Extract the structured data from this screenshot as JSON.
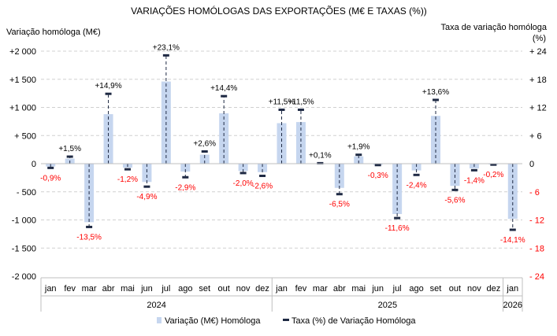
{
  "chart_data": {
    "type": "bar",
    "title": "VARIAÇÕES HOMÓLOGAS DAS EXPORTAÇÕES (M€ E TAXAS (%))",
    "ylabel": "Variação homóloga (M€)",
    "y2label": "Taxa de variação homóloga",
    "y2unit": "(%)",
    "ylim": [
      -2000,
      2000
    ],
    "y2lim": [
      -24,
      24
    ],
    "yticks": [
      "+2 000",
      "+1 500",
      "+1 000",
      "+ 500",
      "0",
      "- 500",
      "-1 000",
      "-1 500",
      "-2 000"
    ],
    "y2ticks": [
      "+ 24",
      "+ 18",
      "+ 12",
      "+ 6",
      "0",
      "- 6",
      "- 12",
      "- 18",
      "- 24"
    ],
    "categories": [
      "jan",
      "fev",
      "mar",
      "abr",
      "mai",
      "jun",
      "jul",
      "ago",
      "set",
      "out",
      "nov",
      "dez",
      "jan",
      "fev",
      "mar",
      "abr",
      "mai",
      "jun",
      "jul",
      "ago",
      "set",
      "out",
      "nov",
      "dez",
      "jan"
    ],
    "years": [
      {
        "label": "2024",
        "count": 12
      },
      {
        "label": "2025",
        "count": 12
      },
      {
        "label": "2026",
        "count": 1
      }
    ],
    "series": [
      {
        "name": "Variação (M€) Homóloga",
        "type": "bar",
        "color": "#c6d6ef",
        "values": [
          -50,
          90,
          -1040,
          880,
          -70,
          -325,
          1460,
          -140,
          160,
          895,
          -130,
          -150,
          720,
          740,
          5,
          -430,
          130,
          -20,
          -895,
          -120,
          850,
          -395,
          -85,
          -15,
          -980
        ]
      },
      {
        "name": "Taxa (%) de Variação Homóloga",
        "type": "marker",
        "axis": "right",
        "color": "#1f2a44",
        "values": [
          -0.9,
          1.5,
          -13.5,
          14.9,
          -1.2,
          -4.9,
          23.1,
          -2.9,
          2.6,
          14.4,
          -2.0,
          -2.6,
          11.5,
          11.5,
          0.1,
          -6.5,
          1.9,
          -0.3,
          -11.6,
          -2.4,
          13.6,
          -5.6,
          -1.4,
          -0.2,
          -14.1
        ],
        "labels": [
          "-0,9%",
          "+1,5%",
          "-13,5%",
          "+14,9%",
          "-1,2%",
          "-4,9%",
          "+23,1%",
          "-2,9%",
          "+2,6%",
          "+14,4%",
          "-2,0%",
          "-2,6%",
          "+11,5%",
          "+11,5%",
          "+0,1%",
          "-6,5%",
          "+1,9%",
          "-0,3%",
          "-11,6%",
          "-2,4%",
          "+13,6%",
          "-5,6%",
          "-1,4%",
          "-0,2%",
          "-14,1%"
        ]
      }
    ],
    "legend": "bottom",
    "grid": true,
    "colors": {
      "negative_label": "#ff0000",
      "positive_label": "#000000",
      "gridline": "#d0d0d0"
    }
  }
}
